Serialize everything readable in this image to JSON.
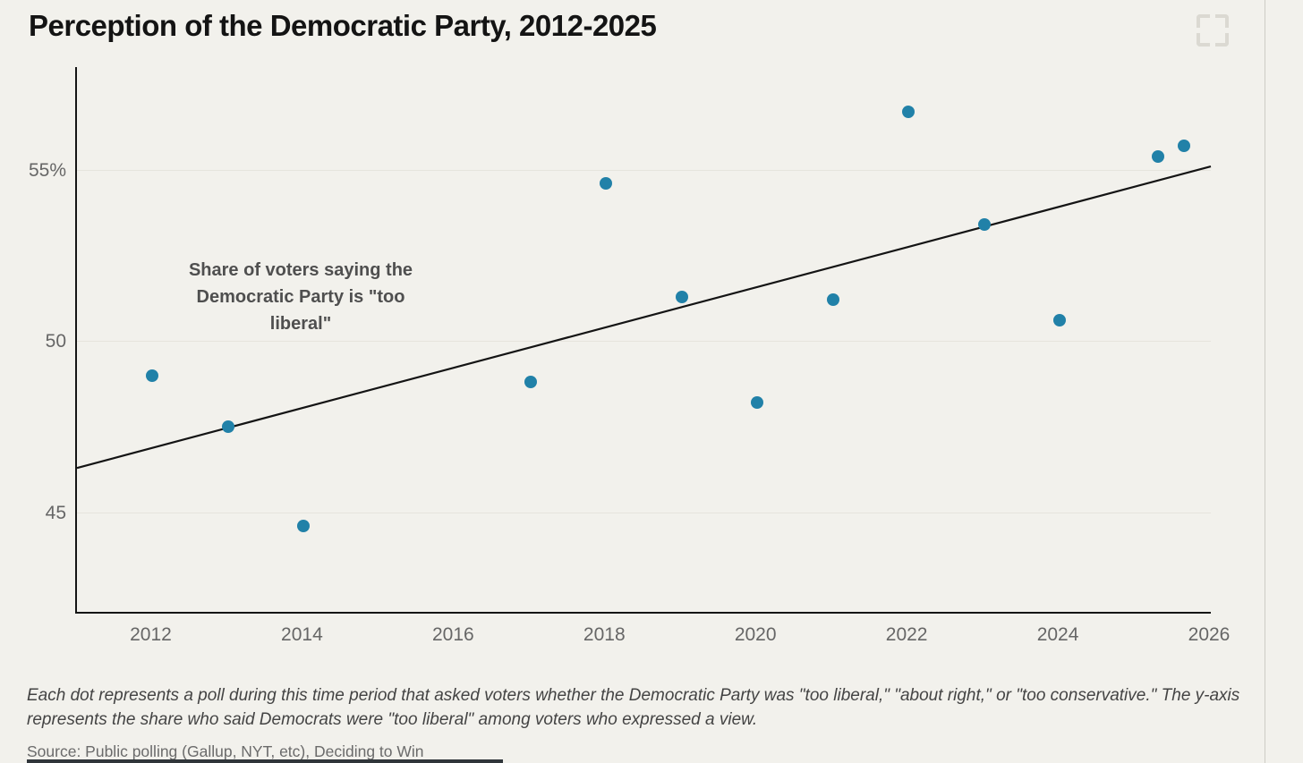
{
  "header": {
    "title": "Perception of the Democratic Party, 2012-2025"
  },
  "footer": {
    "note": "Each dot represents a poll during this time period that asked voters whether the Democratic Party was \"too liberal,\" \"about right,\" or \"too conservative.\" The y-axis represents the share who said Democrats were \"too liberal\" among voters who expressed a view.",
    "source": "Source: Public polling (Gallup, NYT, etc), Deciding to Win"
  },
  "icons": {
    "fullscreen": "fullscreen-expand-icon"
  },
  "colors": {
    "background": "#f2f1ec",
    "dot": "#2181a8",
    "trend_line": "#141414",
    "axis": "#151515",
    "grid": "#e6e4dd",
    "title": "#141414",
    "tick_label": "#666666",
    "annotation": "#4f4f4f"
  },
  "chart_data": {
    "type": "scatter",
    "title": "Perception of the Democratic Party, 2012-2025",
    "annotation": "Share of voters saying the Democratic Party is \"too liberal\"",
    "xlabel": "",
    "ylabel": "",
    "xlim": [
      2011,
      2026
    ],
    "ylim": [
      42.1,
      58.0
    ],
    "grid": "horizontal",
    "legend": "none",
    "xticks": [
      {
        "value": 2012,
        "label": "2012"
      },
      {
        "value": 2014,
        "label": "2014"
      },
      {
        "value": 2016,
        "label": "2016"
      },
      {
        "value": 2018,
        "label": "2018"
      },
      {
        "value": 2020,
        "label": "2020"
      },
      {
        "value": 2022,
        "label": "2022"
      },
      {
        "value": 2024,
        "label": "2024"
      },
      {
        "value": 2026,
        "label": "2026"
      }
    ],
    "yticks": [
      {
        "value": 55,
        "label": "55%"
      },
      {
        "value": 50,
        "label": "50"
      },
      {
        "value": 45,
        "label": "45"
      }
    ],
    "points": [
      {
        "year": 2012.0,
        "value": 49.0
      },
      {
        "year": 2013.0,
        "value": 47.5
      },
      {
        "year": 2014.0,
        "value": 44.6
      },
      {
        "year": 2017.0,
        "value": 48.8
      },
      {
        "year": 2018.0,
        "value": 54.6
      },
      {
        "year": 2019.0,
        "value": 51.3
      },
      {
        "year": 2020.0,
        "value": 48.2
      },
      {
        "year": 2021.0,
        "value": 51.2
      },
      {
        "year": 2022.0,
        "value": 56.7
      },
      {
        "year": 2023.0,
        "value": 53.4
      },
      {
        "year": 2024.0,
        "value": 50.6
      },
      {
        "year": 2025.3,
        "value": 55.4
      },
      {
        "year": 2025.65,
        "value": 55.7
      }
    ],
    "trend_line": {
      "x1": 2011,
      "y1": 46.3,
      "x2": 2026,
      "y2": 55.1
    }
  }
}
